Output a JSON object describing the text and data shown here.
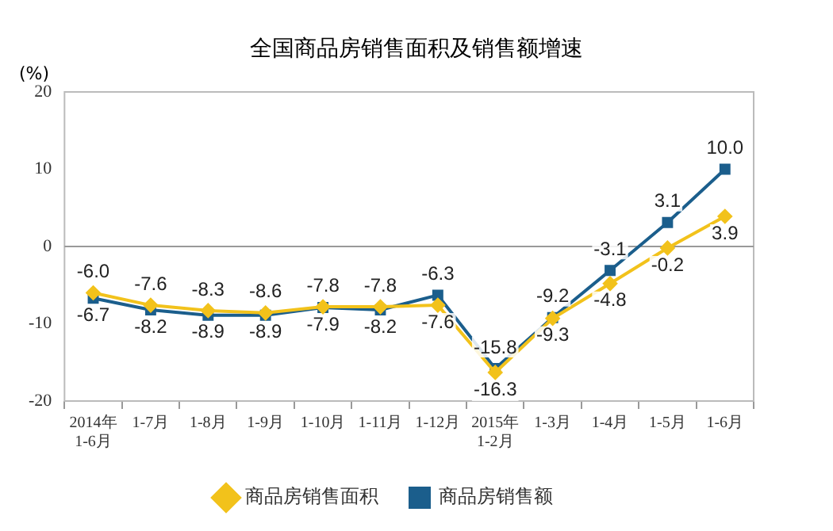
{
  "chart_data": {
    "type": "line",
    "title": "全国商品房销售面积及销售额增速",
    "ylabel": "(%)",
    "categories": [
      "2014年\n1-6月",
      "1-7月",
      "1-8月",
      "1-9月",
      "1-10月",
      "1-11月",
      "1-12月",
      "2015年\n1-2月",
      "1-3月",
      "1-4月",
      "1-5月",
      "1-6月"
    ],
    "series": [
      {
        "name": "商品房销售面积",
        "color": "#f2c21b",
        "marker": "diamond",
        "values": [
          -6.0,
          -7.6,
          -8.3,
          -8.6,
          -7.8,
          -7.8,
          -7.6,
          -16.3,
          -9.3,
          -4.8,
          -0.2,
          3.9
        ],
        "value_labels": [
          "-6.0",
          "-7.6",
          "-8.3",
          "-8.6",
          "-7.8",
          "-7.8",
          "-7.6",
          "-16.3",
          "-9.3",
          "-4.8",
          "-0.2",
          "3.9"
        ]
      },
      {
        "name": "商品房销售额",
        "color": "#1b5e8c",
        "marker": "square",
        "values": [
          -6.7,
          -8.2,
          -8.9,
          -8.9,
          -7.9,
          -8.2,
          -6.3,
          -15.8,
          -9.2,
          -3.1,
          3.1,
          10.0
        ],
        "value_labels": [
          "-6.7",
          "-8.2",
          "-8.9",
          "-8.9",
          "-7.9",
          "-8.2",
          "-6.3",
          "-15.8",
          "-9.2",
          "-3.1",
          "3.1",
          "10.0"
        ]
      }
    ],
    "ylim": [
      -20,
      20
    ],
    "yticks": [
      -20,
      -10,
      0,
      10,
      20
    ],
    "ref_lines": [
      {
        "axis": "y",
        "value": 0,
        "color": "#999999"
      }
    ],
    "legend": "bottom"
  }
}
